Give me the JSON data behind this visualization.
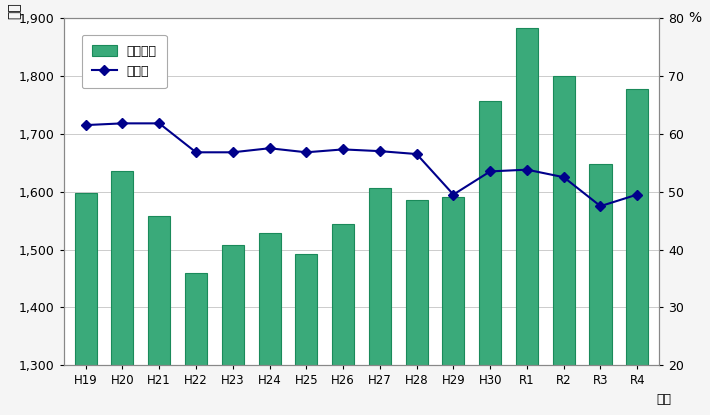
{
  "categories": [
    "H19",
    "H20",
    "H21",
    "H22",
    "H23",
    "H24",
    "H25",
    "H26",
    "H27",
    "H28",
    "H29",
    "H30",
    "R1",
    "R2",
    "R3",
    "R4"
  ],
  "bar_values": [
    1597,
    1635,
    1558,
    1460,
    1508,
    1528,
    1493,
    1545,
    1607,
    1585,
    1590,
    1757,
    1883,
    1800,
    1648,
    1778
  ],
  "line_values": [
    61.5,
    61.8,
    61.8,
    56.8,
    56.8,
    57.5,
    56.8,
    57.3,
    57.0,
    56.5,
    49.5,
    53.5,
    53.8,
    52.5,
    47.5,
    49.5
  ],
  "bar_color": "#3aaa7a",
  "bar_edge_color": "#1a8a5a",
  "line_color": "#00008B",
  "marker_color": "#00008B",
  "ylim_left": [
    1300,
    1900
  ],
  "ylim_right": [
    20,
    80
  ],
  "yticks_left": [
    1300,
    1400,
    1500,
    1600,
    1700,
    1800,
    1900
  ],
  "yticks_right": [
    20,
    30,
    40,
    50,
    60,
    70,
    80
  ],
  "ylabel_left": "億円",
  "ylabel_right": "%",
  "xlabel": "年度",
  "legend_bar": "自主財源",
  "legend_line": "構成比",
  "bg_color": "#f5f5f5",
  "plot_bg_color": "#ffffff"
}
